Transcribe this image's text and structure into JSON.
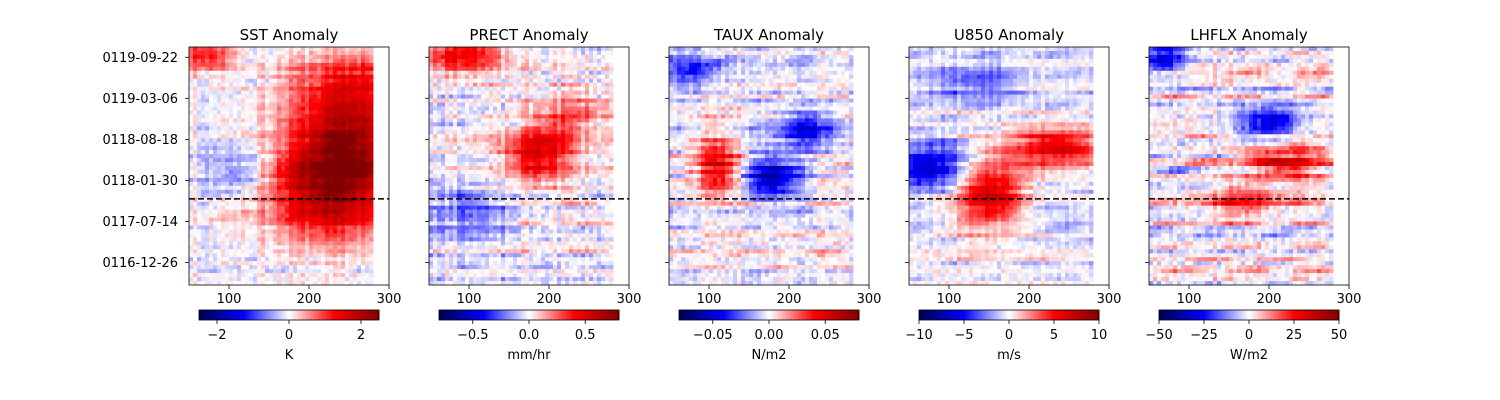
{
  "chart_data": [
    {
      "type": "heatmap",
      "title": "SST Anomaly",
      "xlim": [
        50,
        280
      ],
      "xticks": [
        100,
        200,
        300
      ],
      "yticks": [
        "0116-12-26",
        "0117-07-14",
        "0118-01-30",
        "0118-08-18",
        "0119-03-06",
        "0119-09-22"
      ],
      "show_ytick_labels": true,
      "dashed_line_date": "0117-11-01",
      "colorbar": {
        "label": "K",
        "vmin": -2.5,
        "vmax": 2.5,
        "ticks": [
          -2,
          0,
          2
        ],
        "tick_labels": [
          "−2",
          "0",
          "2"
        ],
        "colormap": "seismic"
      },
      "pattern": {
        "amp": 0.55,
        "blobs": [
          {
            "x": 230,
            "t": 0.4,
            "sx": 55,
            "st": 0.14,
            "a": 1.0
          },
          {
            "x": 250,
            "t": 0.62,
            "sx": 50,
            "st": 0.12,
            "a": 0.8
          },
          {
            "x": 260,
            "t": 0.85,
            "sx": 60,
            "st": 0.1,
            "a": 0.55
          },
          {
            "x": 70,
            "t": 0.97,
            "sx": 25,
            "st": 0.05,
            "a": 0.6
          },
          {
            "x": 110,
            "t": 0.48,
            "sx": 30,
            "st": 0.06,
            "a": -0.35
          }
        ],
        "noise": 0.22,
        "bandiness": 0.7,
        "seed": 11
      }
    },
    {
      "type": "heatmap",
      "title": "PRECT Anomaly",
      "xlim": [
        50,
        280
      ],
      "xticks": [
        100,
        200,
        300
      ],
      "yticks": [
        "0116-12-26",
        "0117-07-14",
        "0118-01-30",
        "0118-08-18",
        "0119-03-06",
        "0119-09-22"
      ],
      "show_ytick_labels": false,
      "dashed_line_date": "0117-11-01",
      "colorbar": {
        "label": "mm/hr",
        "vmin": -0.8,
        "vmax": 0.8,
        "ticks": [
          -0.5,
          0.0,
          0.5
        ],
        "tick_labels": [
          "−0.5",
          "0.0",
          "0.5"
        ],
        "colormap": "seismic"
      },
      "pattern": {
        "amp": 0.55,
        "blobs": [
          {
            "x": 190,
            "t": 0.55,
            "sx": 30,
            "st": 0.08,
            "a": 0.75
          },
          {
            "x": 90,
            "t": 0.97,
            "sx": 35,
            "st": 0.05,
            "a": 0.7
          },
          {
            "x": 100,
            "t": 0.3,
            "sx": 40,
            "st": 0.08,
            "a": -0.35
          },
          {
            "x": 230,
            "t": 0.72,
            "sx": 35,
            "st": 0.06,
            "a": 0.4
          }
        ],
        "noise": 0.3,
        "bandiness": 0.75,
        "seed": 23
      }
    },
    {
      "type": "heatmap",
      "title": "TAUX Anomaly",
      "xlim": [
        50,
        280
      ],
      "xticks": [
        100,
        200,
        300
      ],
      "yticks": [
        "0116-12-26",
        "0117-07-14",
        "0118-01-30",
        "0118-08-18",
        "0119-03-06",
        "0119-09-22"
      ],
      "show_ytick_labels": false,
      "dashed_line_date": "0117-11-01",
      "colorbar": {
        "label": "N/m2",
        "vmin": -0.08,
        "vmax": 0.08,
        "ticks": [
          -0.05,
          0.0,
          0.05
        ],
        "tick_labels": [
          "−0.05",
          "0.00",
          "0.05"
        ],
        "colormap": "seismic"
      },
      "pattern": {
        "amp": 0.5,
        "blobs": [
          {
            "x": 180,
            "t": 0.45,
            "sx": 25,
            "st": 0.06,
            "a": -0.9
          },
          {
            "x": 220,
            "t": 0.65,
            "sx": 30,
            "st": 0.06,
            "a": -0.6
          },
          {
            "x": 110,
            "t": 0.5,
            "sx": 20,
            "st": 0.08,
            "a": 0.7
          },
          {
            "x": 80,
            "t": 0.9,
            "sx": 25,
            "st": 0.05,
            "a": -0.5
          }
        ],
        "noise": 0.35,
        "bandiness": 0.75,
        "seed": 37
      }
    },
    {
      "type": "heatmap",
      "title": "U850 Anomaly",
      "xlim": [
        50,
        280
      ],
      "xticks": [
        100,
        200,
        300
      ],
      "yticks": [
        "0116-12-26",
        "0117-07-14",
        "0118-01-30",
        "0118-08-18",
        "0119-03-06",
        "0119-09-22"
      ],
      "show_ytick_labels": false,
      "dashed_line_date": "0117-11-01",
      "colorbar": {
        "label": "m/s",
        "vmin": -10,
        "vmax": 10,
        "ticks": [
          -10,
          -5,
          0,
          5,
          10
        ],
        "tick_labels": [
          "−10",
          "−5",
          "0",
          "5",
          "10"
        ],
        "colormap": "seismic"
      },
      "pattern": {
        "amp": 0.5,
        "blobs": [
          {
            "x": 150,
            "t": 0.38,
            "sx": 30,
            "st": 0.1,
            "a": 0.9
          },
          {
            "x": 235,
            "t": 0.58,
            "sx": 40,
            "st": 0.06,
            "a": 0.8
          },
          {
            "x": 80,
            "t": 0.5,
            "sx": 35,
            "st": 0.07,
            "a": -0.8
          },
          {
            "x": 130,
            "t": 0.85,
            "sx": 40,
            "st": 0.06,
            "a": -0.4
          }
        ],
        "noise": 0.3,
        "bandiness": 0.8,
        "seed": 53
      }
    },
    {
      "type": "heatmap",
      "title": "LHFLX Anomaly",
      "xlim": [
        50,
        280
      ],
      "xticks": [
        100,
        200,
        300
      ],
      "yticks": [
        "0116-12-26",
        "0117-07-14",
        "0118-01-30",
        "0118-08-18",
        "0119-03-06",
        "0119-09-22"
      ],
      "show_ytick_labels": false,
      "dashed_line_date": "0117-11-01",
      "colorbar": {
        "label": "W/m2",
        "vmin": -50,
        "vmax": 50,
        "ticks": [
          -50,
          -25,
          0,
          25,
          50
        ],
        "tick_labels": [
          "−50",
          "−25",
          "0",
          "25",
          "50"
        ],
        "colormap": "seismic"
      },
      "pattern": {
        "amp": 0.5,
        "blobs": [
          {
            "x": 220,
            "t": 0.52,
            "sx": 40,
            "st": 0.06,
            "a": 0.7
          },
          {
            "x": 170,
            "t": 0.35,
            "sx": 40,
            "st": 0.05,
            "a": 0.5
          },
          {
            "x": 200,
            "t": 0.68,
            "sx": 30,
            "st": 0.05,
            "a": -0.75
          },
          {
            "x": 70,
            "t": 0.95,
            "sx": 20,
            "st": 0.05,
            "a": -0.7
          }
        ],
        "noise": 0.45,
        "bandiness": 0.8,
        "seed": 71
      }
    }
  ]
}
